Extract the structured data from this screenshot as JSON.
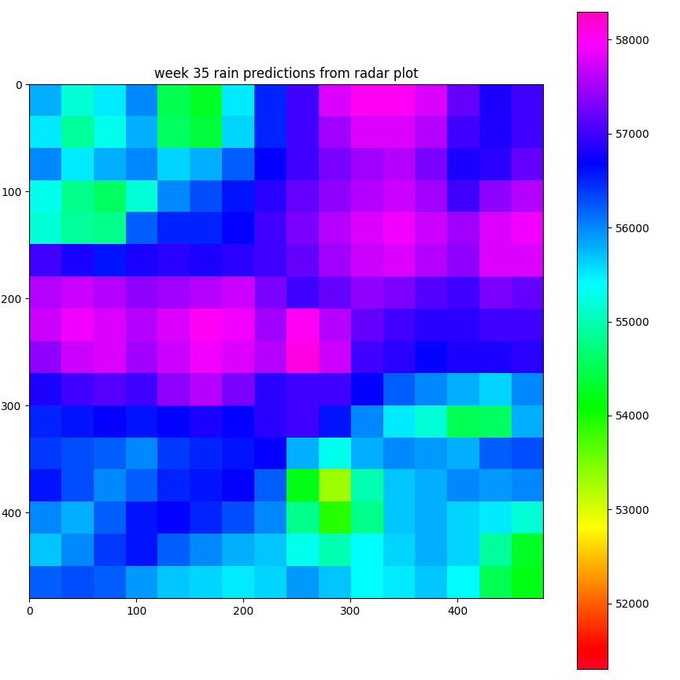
{
  "chart_data": {
    "type": "heatmap",
    "title": "week 35 rain predictions from radar plot",
    "xlim": [
      0,
      480
    ],
    "ylim": [
      480,
      0
    ],
    "xticks": [
      0,
      100,
      200,
      300,
      400
    ],
    "yticks": [
      0,
      100,
      200,
      300,
      400
    ],
    "color_range": [
      51300,
      58300
    ],
    "color_ticks": [
      52000,
      53000,
      54000,
      55000,
      56000,
      57000,
      58000
    ],
    "cells": [
      [
        55800,
        55200,
        55500,
        56000,
        54500,
        54300,
        55500,
        56500,
        57000,
        57800,
        58000,
        58000,
        57800,
        57200,
        56800,
        57000
      ],
      [
        55500,
        54900,
        55300,
        55800,
        54600,
        54400,
        55600,
        56500,
        57000,
        57500,
        57800,
        57800,
        57600,
        57000,
        56800,
        57000
      ],
      [
        56000,
        55500,
        55800,
        56000,
        55600,
        55800,
        56200,
        56700,
        57000,
        57300,
        57500,
        57600,
        57300,
        56800,
        56900,
        57200
      ],
      [
        55300,
        54800,
        54600,
        55200,
        56000,
        56300,
        56600,
        56900,
        57200,
        57400,
        57600,
        57700,
        57500,
        57000,
        57400,
        57600
      ],
      [
        55200,
        54900,
        54800,
        56200,
        56500,
        56500,
        56700,
        57000,
        57300,
        57600,
        57800,
        57900,
        57700,
        57500,
        57800,
        57900
      ],
      [
        57000,
        56800,
        56600,
        56800,
        56900,
        56800,
        56900,
        57000,
        57200,
        57500,
        57700,
        57800,
        57600,
        57400,
        57800,
        57800
      ],
      [
        57600,
        57700,
        57600,
        57400,
        57500,
        57600,
        57700,
        57300,
        57000,
        57200,
        57400,
        57300,
        57100,
        57000,
        57300,
        57200
      ],
      [
        57700,
        57900,
        57800,
        57600,
        57800,
        58000,
        57900,
        57500,
        58000,
        57600,
        57200,
        57000,
        56900,
        56900,
        57000,
        57000
      ],
      [
        57400,
        57700,
        57800,
        57500,
        57700,
        57900,
        57800,
        57600,
        58100,
        57700,
        57000,
        56900,
        56700,
        56800,
        56800,
        56900
      ],
      [
        56800,
        57000,
        57100,
        57000,
        57400,
        57600,
        57300,
        56900,
        57000,
        57000,
        56700,
        56200,
        56000,
        55800,
        55600,
        56000
      ],
      [
        56500,
        56600,
        56700,
        56600,
        56700,
        56800,
        56700,
        56900,
        57000,
        56600,
        56000,
        55500,
        55200,
        54500,
        54600,
        55800
      ],
      [
        56400,
        56300,
        56200,
        56000,
        56400,
        56500,
        56600,
        56700,
        55800,
        55300,
        55800,
        56000,
        55900,
        55800,
        56200,
        56300
      ],
      [
        56600,
        56300,
        56000,
        56200,
        56500,
        56600,
        56700,
        56200,
        54200,
        53300,
        55000,
        55700,
        55800,
        56000,
        55900,
        56000
      ],
      [
        56000,
        55800,
        56200,
        56600,
        56700,
        56500,
        56300,
        56000,
        54800,
        53900,
        54800,
        55700,
        55800,
        55600,
        55500,
        55200
      ],
      [
        55700,
        56000,
        56400,
        56600,
        56200,
        56000,
        55800,
        55700,
        55300,
        55000,
        55400,
        55600,
        55800,
        55600,
        54900,
        54300
      ],
      [
        56200,
        56300,
        56200,
        55900,
        55700,
        55600,
        55500,
        55600,
        55900,
        55700,
        55400,
        55500,
        55700,
        55400,
        54500,
        54200
      ]
    ]
  }
}
